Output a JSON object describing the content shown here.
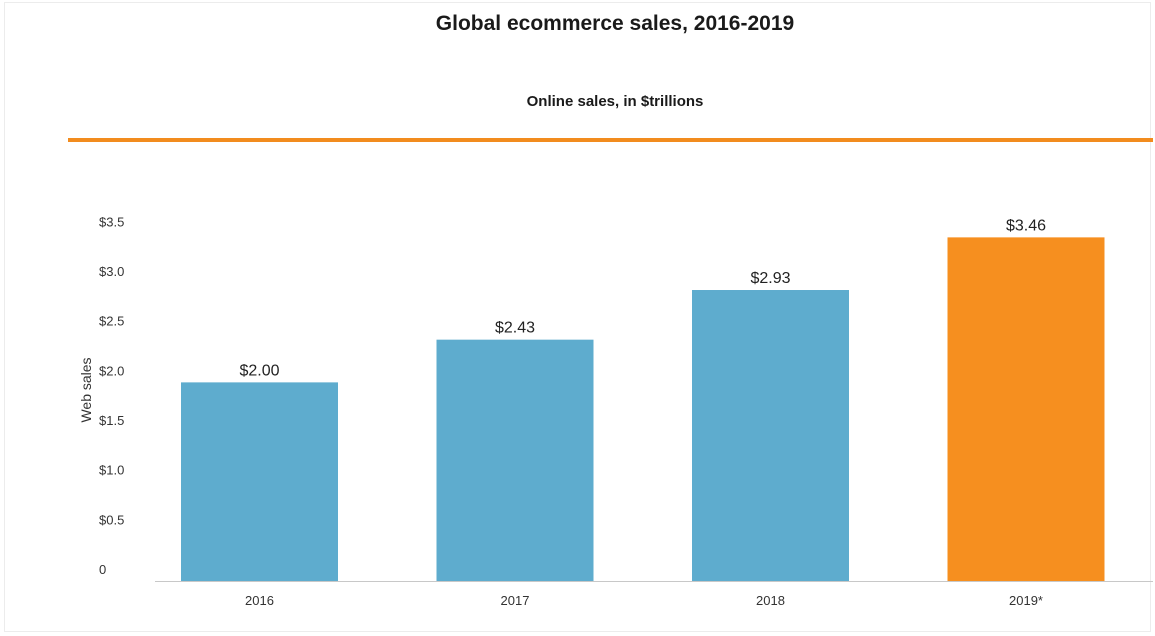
{
  "chart_data": {
    "type": "bar",
    "title": "Global ecommerce sales, 2016-2019",
    "subtitle": "Online sales, in $trillions",
    "xlabel": "",
    "ylabel": "Web sales",
    "categories": [
      "2016",
      "2017",
      "2018",
      "2019*"
    ],
    "values": [
      2.0,
      2.43,
      2.93,
      3.46
    ],
    "data_labels": [
      "$2.00",
      "$2.43",
      "$2.93",
      "$3.46"
    ],
    "ylim": [
      0,
      3.5
    ],
    "yticks": [
      0,
      0.5,
      1.0,
      1.5,
      2.0,
      2.5,
      3.0,
      3.5
    ],
    "ytick_labels": [
      "0",
      "$0.5",
      "$1.0",
      "$1.5",
      "$2.0",
      "$2.5",
      "$3.0",
      "$3.5"
    ],
    "grid": false,
    "legend": "none",
    "colors": {
      "bar": "#5eacce",
      "highlight_bar": "#f68f1f",
      "accent": "#f28c1e",
      "axis": "#c8c8c8"
    },
    "highlight_index": 3
  }
}
